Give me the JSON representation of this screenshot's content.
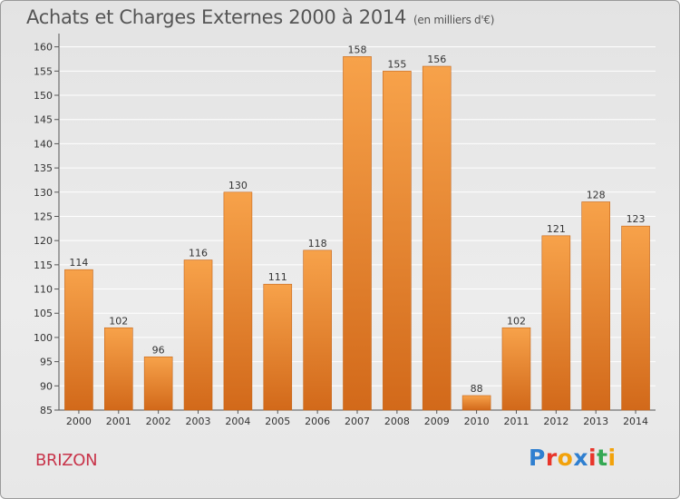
{
  "header": {
    "title": "Achats et Charges Externes 2000 à 2014",
    "subtitle": "(en milliers d'€)"
  },
  "commune": "BRIZON",
  "logo": {
    "letters": [
      "P",
      "r",
      "o",
      "x",
      "i",
      "t",
      "i"
    ],
    "colors": [
      "#2f7fd0",
      "#e8352a",
      "#f2a20b",
      "#2f7fd0",
      "#e8352a",
      "#35a853",
      "#f2a20b"
    ]
  },
  "chart_data": {
    "type": "bar",
    "title": "Achats et Charges Externes 2000 à 2014",
    "subtitle": "(en milliers d'€)",
    "categories": [
      "2000",
      "2001",
      "2002",
      "2003",
      "2004",
      "2005",
      "2006",
      "2007",
      "2008",
      "2009",
      "2010",
      "2011",
      "2012",
      "2013",
      "2014"
    ],
    "values": [
      114,
      102,
      96,
      116,
      130,
      111,
      118,
      158,
      155,
      156,
      88,
      102,
      121,
      128,
      123
    ],
    "yticks": [
      85,
      90,
      95,
      100,
      105,
      110,
      115,
      120,
      125,
      130,
      135,
      140,
      145,
      150,
      155,
      160
    ],
    "ylim": [
      85,
      162
    ],
    "grid": true,
    "colors": {
      "bar_top": "#f7a24a",
      "bar_bottom": "#d2691a",
      "grid": "#ffffff"
    }
  }
}
